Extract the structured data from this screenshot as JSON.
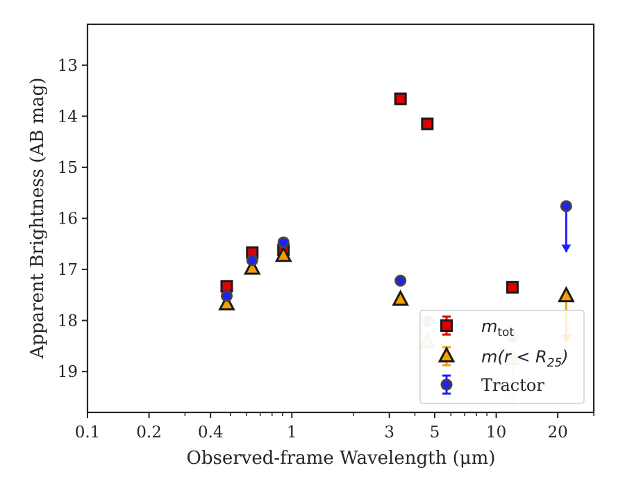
{
  "chart_data": {
    "type": "scatter",
    "xlabel": "Observed-frame Wavelength (μm)",
    "ylabel": "Apparent Brightness (AB mag)",
    "xscale": "log",
    "xlim": [
      0.1,
      30
    ],
    "ylim": [
      19.8,
      12.2
    ],
    "y_inverted": true,
    "xticks": [
      0.1,
      0.2,
      0.4,
      1,
      3,
      5,
      10,
      20
    ],
    "xtick_labels": [
      "0.1",
      "0.2",
      "0.4",
      "1",
      "3",
      "5",
      "10",
      "20"
    ],
    "yticks": [
      13,
      14,
      15,
      16,
      17,
      18,
      19
    ],
    "ytick_labels": [
      "13",
      "14",
      "15",
      "16",
      "17",
      "18",
      "19"
    ],
    "grid": false,
    "legend_position": "lower-right",
    "series": [
      {
        "name": "m_tot",
        "marker": "square",
        "color": "#e00000",
        "points": [
          {
            "x": 0.48,
            "y": 17.33
          },
          {
            "x": 0.64,
            "y": 16.67
          },
          {
            "x": 0.91,
            "y": 16.62
          },
          {
            "x": 3.4,
            "y": 13.66
          },
          {
            "x": 4.6,
            "y": 14.15
          },
          {
            "x": 12.0,
            "y": 17.35
          }
        ]
      },
      {
        "name": "m(r < R25)",
        "marker": "triangle",
        "color": "#f5a000",
        "points": [
          {
            "x": 0.48,
            "y": 17.68
          },
          {
            "x": 0.64,
            "y": 16.98
          },
          {
            "x": 0.91,
            "y": 16.73
          },
          {
            "x": 3.4,
            "y": 17.59
          },
          {
            "x": 4.6,
            "y": 18.42,
            "faded": true
          },
          {
            "x": 12.0,
            "y": 18.75,
            "faded": true,
            "upper_limit": true
          },
          {
            "x": 22.0,
            "y": 17.52,
            "upper_limit": true
          }
        ]
      },
      {
        "name": "Tractor",
        "marker": "circle",
        "color": "#1f1fff",
        "points": [
          {
            "x": 0.48,
            "y": 17.52
          },
          {
            "x": 0.64,
            "y": 16.82
          },
          {
            "x": 0.91,
            "y": 16.47
          },
          {
            "x": 3.4,
            "y": 17.22
          },
          {
            "x": 4.6,
            "y": 18.02,
            "faded": true
          },
          {
            "x": 12.0,
            "y": 18.33,
            "faded": true
          },
          {
            "x": 22.0,
            "y": 15.76,
            "upper_limit": true
          }
        ]
      }
    ],
    "legend": [
      {
        "series": "m_tot",
        "base": "m",
        "sub": "tot"
      },
      {
        "series": "m(r < R25)",
        "base": "m(r < R",
        "sub": "25",
        "suffix": ")"
      },
      {
        "series": "Tractor",
        "base": "Tractor"
      }
    ]
  }
}
